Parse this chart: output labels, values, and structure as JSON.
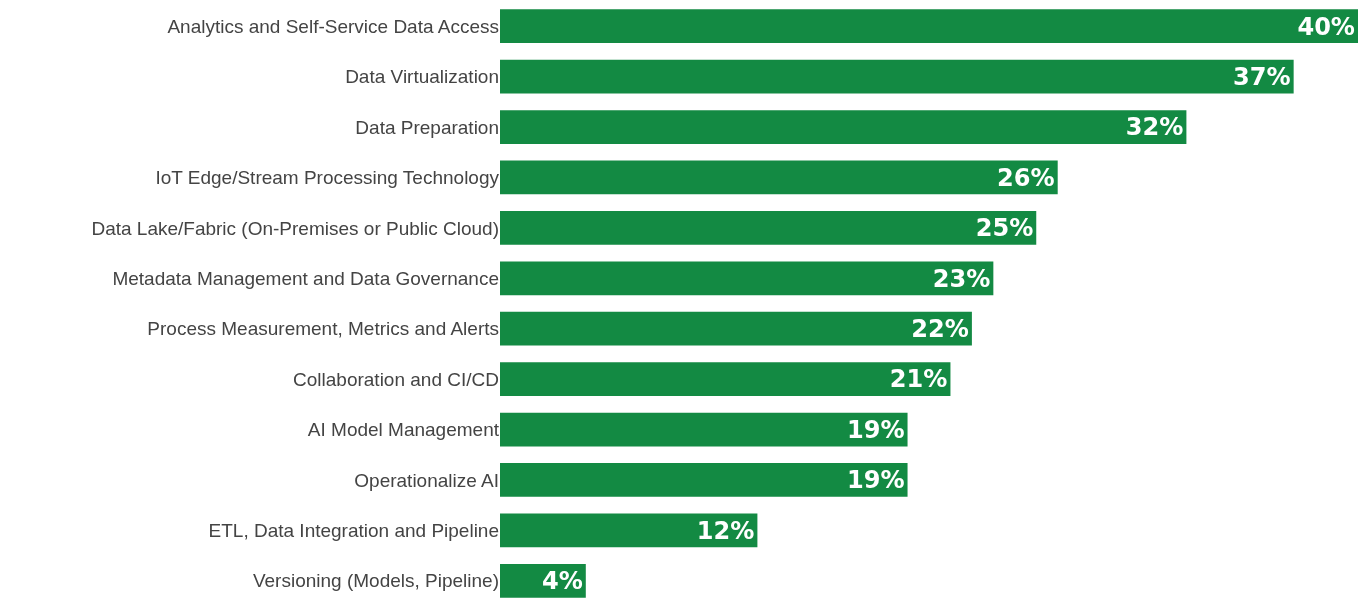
{
  "chart_data": {
    "type": "bar",
    "orientation": "horizontal",
    "categories": [
      "Analytics and Self-Service Data Access",
      "Data Virtualization",
      "Data Preparation",
      "IoT Edge/Stream Processing Technology",
      "Data Lake/Fabric (On-Premises or Public Cloud)",
      "Metadata Management and Data Governance",
      "Process Measurement, Metrics and Alerts",
      "Collaboration and CI/CD",
      "AI Model Management",
      "Operationalize AI",
      "ETL, Data Integration and Pipeline",
      "Versioning (Models, Pipeline)"
    ],
    "values": [
      40,
      37,
      32,
      26,
      25,
      23,
      22,
      21,
      19,
      19,
      12,
      4
    ],
    "value_labels": [
      "40%",
      "37%",
      "32%",
      "26%",
      "25%",
      "23%",
      "22%",
      "21%",
      "19%",
      "19%",
      "12%",
      "4%"
    ],
    "color": "#138a43",
    "xlim": [
      0,
      40
    ],
    "grid": false,
    "legend": false,
    "tick_labels": "y"
  }
}
